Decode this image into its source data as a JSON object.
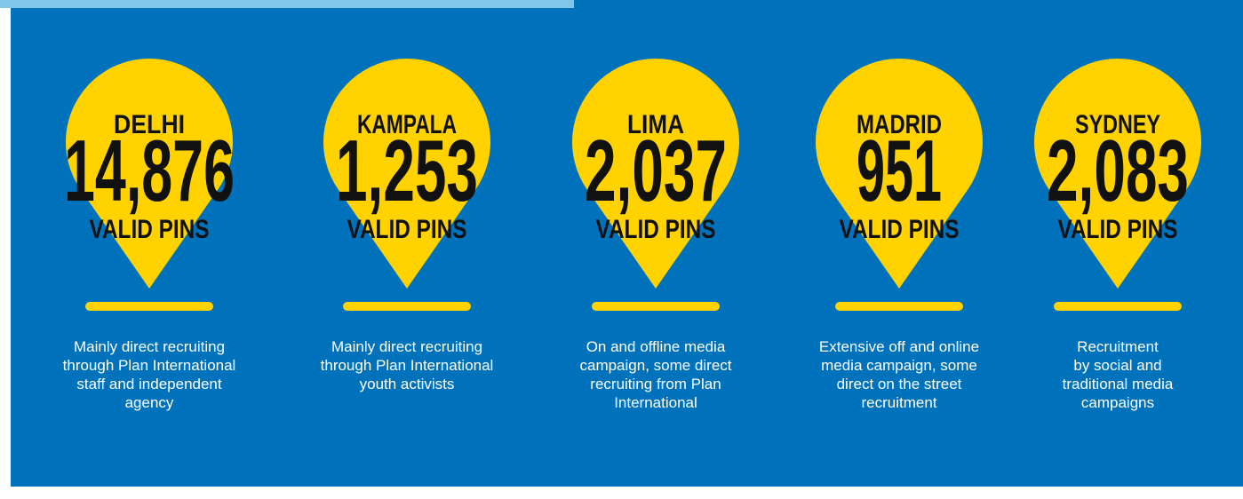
{
  "pins": [
    {
      "city": "DELHI",
      "count": "14,876",
      "label": "VALID PINS",
      "description": [
        "Mainly direct recruiting",
        "through Plan International",
        "staff and independent",
        "agency"
      ]
    },
    {
      "city": "KAMPALA",
      "count": "1,253",
      "label": "VALID PINS",
      "description": [
        "Mainly direct recruiting",
        "through Plan International",
        "youth activists"
      ]
    },
    {
      "city": "LIMA",
      "count": "2,037",
      "label": "VALID PINS",
      "description": [
        "On and offline media",
        "campaign, some direct",
        "recruiting from Plan",
        "International"
      ]
    },
    {
      "city": "MADRID",
      "count": "951",
      "label": "VALID PINS",
      "description": [
        "Extensive off and online",
        "media campaign, some",
        "direct on the street",
        "recruitment"
      ]
    },
    {
      "city": "SYDNEY",
      "count": "2,083",
      "label": "VALID PINS",
      "description": [
        "Recruitment",
        "by social and",
        "traditional media",
        "campaigns"
      ]
    }
  ]
}
